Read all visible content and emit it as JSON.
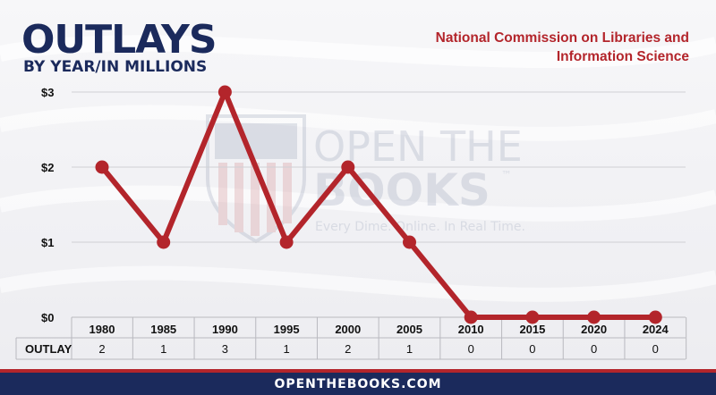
{
  "header": {
    "title": "OUTLAYS",
    "subtitle": "BY YEAR/IN MILLIONS",
    "agency": "National Commission on Libraries and Information Science"
  },
  "watermark": {
    "line1": "OPEN THE",
    "line2": "BOOKS",
    "tm": "™",
    "tagline": "Every Dime. Online. In Real Time."
  },
  "footer": {
    "site": "OPENTHEBOOKS.COM"
  },
  "table": {
    "row_label": "OUTLAY"
  },
  "colors": {
    "line": "#b3252b",
    "navy": "#1b2a5c",
    "grid": "#d0d0d4"
  },
  "chart_data": {
    "type": "line",
    "categories": [
      "1980",
      "1985",
      "1990",
      "1995",
      "2000",
      "2005",
      "2010",
      "2015",
      "2020",
      "2024"
    ],
    "values": [
      2,
      1,
      3,
      1,
      2,
      1,
      0,
      0,
      0,
      0
    ],
    "value_labels": [
      "2",
      "1",
      "3",
      "1",
      "2",
      "1",
      "0",
      "0",
      "0",
      "0"
    ],
    "yticks": [
      0,
      1,
      2,
      3
    ],
    "ytick_labels": [
      "$0",
      "$1",
      "$2",
      "$3"
    ],
    "ylim": [
      0,
      3
    ],
    "grid": true,
    "legend": "none"
  }
}
